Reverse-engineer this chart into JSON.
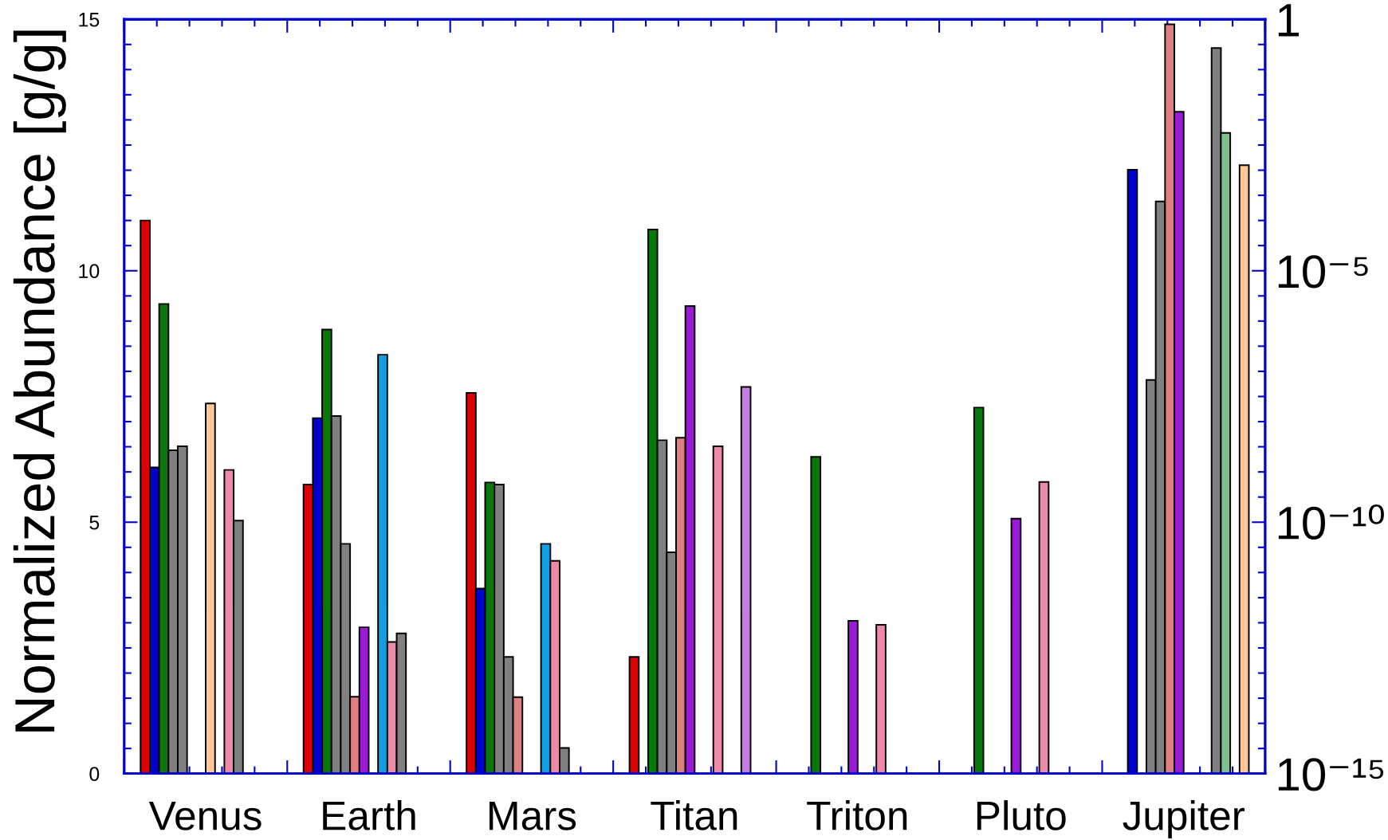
{
  "chart_data": {
    "type": "bar",
    "ylabel": "Normalized Abundance [g/g]",
    "categories": [
      "Venus",
      "Earth",
      "Mars",
      "Titan",
      "Triton",
      "Pluto",
      "Jupiter"
    ],
    "series": [
      {
        "color": "#dd0000",
        "values": [
          11.0,
          5.75,
          7.57,
          2.32,
          null,
          null,
          null
        ]
      },
      {
        "color": "#0000cc",
        "values": [
          6.09,
          7.07,
          3.68,
          null,
          null,
          null,
          12.01
        ]
      },
      {
        "color": "#087808",
        "values": [
          9.34,
          8.83,
          5.79,
          10.82,
          6.3,
          7.28,
          null
        ]
      },
      {
        "color": "#808080",
        "values": [
          6.43,
          7.11,
          5.75,
          6.63,
          null,
          null,
          7.83
        ]
      },
      {
        "color": "#808080",
        "values": [
          6.51,
          4.57,
          2.32,
          4.4,
          null,
          null,
          11.38
        ]
      },
      {
        "color": "#e07f7f",
        "values": [
          null,
          1.53,
          1.52,
          6.68,
          null,
          null,
          14.9
        ]
      },
      {
        "color": "#9a1ad6",
        "values": [
          null,
          2.91,
          null,
          9.3,
          3.04,
          5.07,
          13.16
        ]
      },
      {
        "color": "#ffc896",
        "values": [
          7.36,
          null,
          null,
          null,
          null,
          null,
          null
        ]
      },
      {
        "color": "#10a0e0",
        "values": [
          null,
          8.33,
          4.57,
          null,
          null,
          null,
          null
        ]
      },
      {
        "color": "#ee8aa8",
        "values": [
          6.04,
          2.62,
          4.23,
          6.51,
          2.96,
          5.8,
          null
        ]
      },
      {
        "color": "#808080",
        "values": [
          5.03,
          2.79,
          0.51,
          null,
          null,
          null,
          14.43
        ]
      },
      {
        "color": "#80c090",
        "values": [
          null,
          null,
          null,
          null,
          null,
          null,
          12.74
        ]
      },
      {
        "color": "#c47ee0",
        "values": [
          null,
          null,
          null,
          7.69,
          null,
          null,
          null
        ]
      },
      {
        "color": "#ffc896",
        "values": [
          null,
          null,
          null,
          null,
          null,
          null,
          12.1
        ]
      }
    ],
    "ylim": [
      0,
      15
    ],
    "yticks": [
      0,
      {
        "value": 0.5,
        "label": null
      },
      {
        "value": 1,
        "label": null
      },
      {
        "value": 1.5,
        "label": null
      },
      {
        "value": 2,
        "label": null
      },
      {
        "value": 2.5,
        "label": null
      },
      {
        "value": 3,
        "label": null
      },
      {
        "value": 3.5,
        "label": null
      },
      {
        "value": 4,
        "label": null
      },
      {
        "value": 4.5,
        "label": null
      },
      5,
      {
        "value": 5.5,
        "label": null
      },
      {
        "value": 6,
        "label": null
      },
      {
        "value": 6.5,
        "label": null
      },
      {
        "value": 7,
        "label": null
      },
      {
        "value": 7.5,
        "label": null
      },
      {
        "value": 8,
        "label": null
      },
      {
        "value": 8.5,
        "label": null
      },
      {
        "value": 9,
        "label": null
      },
      {
        "value": 9.5,
        "label": null
      },
      10,
      {
        "value": 10.5,
        "label": null
      },
      {
        "value": 11,
        "label": null
      },
      {
        "value": 11.5,
        "label": null
      },
      {
        "value": 12,
        "label": null
      },
      {
        "value": 12.5,
        "label": null
      },
      {
        "value": 13,
        "label": null
      },
      {
        "value": 13.5,
        "label": null
      },
      {
        "value": 14,
        "label": null
      },
      {
        "value": 14.5,
        "label": null
      },
      15
    ],
    "y2lim": [
      1e-15,
      1
    ],
    "y2ticks": [
      1,
      {
        "value": 1e-05,
        "label": "10⁻⁵"
      },
      {
        "value": 1e-10,
        "label": "10⁻¹⁰"
      },
      {
        "value": 1e-15,
        "label": "10⁻¹⁵"
      }
    ],
    "log": "y2"
  }
}
